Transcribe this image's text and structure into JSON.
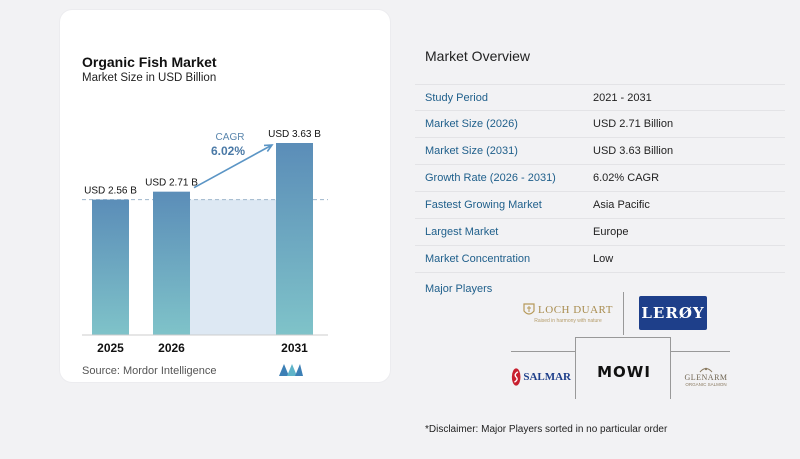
{
  "chart": {
    "title": "Organic Fish Market",
    "subtitle": "Market Size in USD Billion",
    "source": "Source:  Mordor Intelligence",
    "cagr_label": "CAGR",
    "cagr_value": "6.02%"
  },
  "chart_data": {
    "type": "bar",
    "title": "Organic Fish Market",
    "subtitle": "Market Size in USD Billion",
    "categories": [
      "2025",
      "2026",
      "2031"
    ],
    "values": [
      2.56,
      2.71,
      3.63
    ],
    "data_labels": [
      "USD 2.56 B",
      "USD 2.71 B",
      "USD 3.63 B"
    ],
    "ylabel": "",
    "xlabel": "",
    "ylim": [
      0,
      3.63
    ],
    "grid": false,
    "annotation": {
      "label": "CAGR",
      "value": "6.02%"
    },
    "colors": {
      "bar_top": "#5b8db8",
      "bar_bottom": "#7fc3c9",
      "highlight": "#dde8f3",
      "arrow": "#5b95c5"
    }
  },
  "overview": {
    "title": "Market Overview",
    "rows": [
      {
        "label": "Study Period",
        "value": "2021 - 2031"
      },
      {
        "label": "Market Size (2026)",
        "value": "USD 2.71 Billion"
      },
      {
        "label": "Market Size (2031)",
        "value": "USD 3.63 Billion"
      },
      {
        "label": "Growth Rate (2026 - 2031)",
        "value": "6.02% CAGR"
      },
      {
        "label": "Fastest Growing Market",
        "value": "Asia Pacific"
      },
      {
        "label": "Largest Market",
        "value": "Europe"
      },
      {
        "label": "Market Concentration",
        "value": "Low"
      }
    ]
  },
  "players": {
    "title": "Major Players",
    "logos": [
      "LOCH DUART",
      "LERØY",
      "SALMAR",
      "MOWI",
      "GLENARM"
    ],
    "loch_duart_tagline": "Raised in harmony with nature",
    "glenarm_tagline": "ORGANIC SALMON"
  },
  "disclaimer": "*Disclaimer: Major Players sorted in no particular order",
  "colors": {
    "label_blue": "#1f5f8b",
    "lerøy_blue": "#1e3f8a",
    "salmar_red": "#c8202f"
  }
}
